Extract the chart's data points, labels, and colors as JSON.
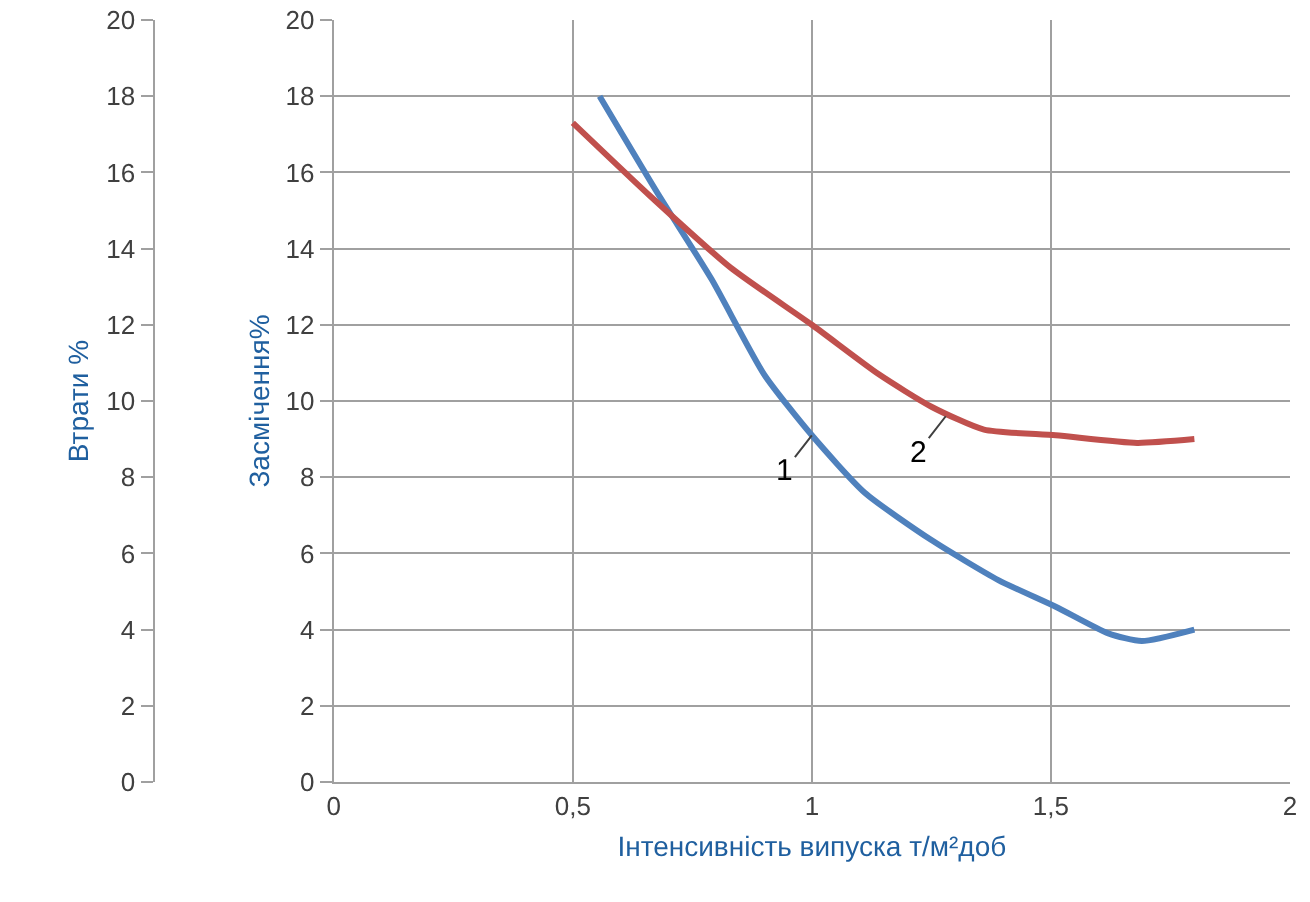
{
  "chart_data": {
    "type": "line",
    "xlabel": "Інтенсивність випуска т/м²доб",
    "ylabel": "Втрати %",
    "y2label": "Засмічення%",
    "xlim": [
      0,
      2
    ],
    "xticks": [
      0,
      {
        "value": 0.5,
        "label": "0,5"
      },
      1,
      {
        "value": 1.5,
        "label": "1,5"
      },
      2
    ],
    "ylim": [
      0,
      20
    ],
    "yticks": [
      0,
      2,
      4,
      6,
      8,
      10,
      12,
      14,
      16,
      18,
      20
    ],
    "y2lim": [
      0,
      20
    ],
    "y2ticks": [
      0,
      2,
      4,
      6,
      8,
      10,
      12,
      14,
      16,
      18,
      20
    ],
    "grid": true,
    "marker": "none",
    "line_style": "solid",
    "series": [
      {
        "color": "#4f81bd",
        "x": [
          0.556,
          0.68,
          0.79,
          0.9,
          1.0,
          1.11,
          1.25,
          1.39,
          1.51,
          1.62,
          1.69,
          1.8
        ],
        "values": [
          18.0,
          15.4,
          13.2,
          10.7,
          9.1,
          7.6,
          6.35,
          5.3,
          4.6,
          3.9,
          3.7,
          4.0
        ]
      },
      {
        "color": "#c0504d",
        "axis": "y2",
        "x": [
          0.5,
          0.66,
          0.83,
          1.0,
          1.14,
          1.25,
          1.36,
          1.51,
          1.68,
          1.8
        ],
        "values": [
          17.3,
          15.4,
          13.5,
          12.0,
          10.7,
          9.85,
          9.25,
          9.1,
          8.9,
          9.0
        ]
      }
    ],
    "annotations": [
      {
        "text": "1",
        "x": 1.0,
        "y": 9.1
      },
      {
        "text": "2",
        "x": 1.28,
        "y": 9.6
      }
    ]
  }
}
